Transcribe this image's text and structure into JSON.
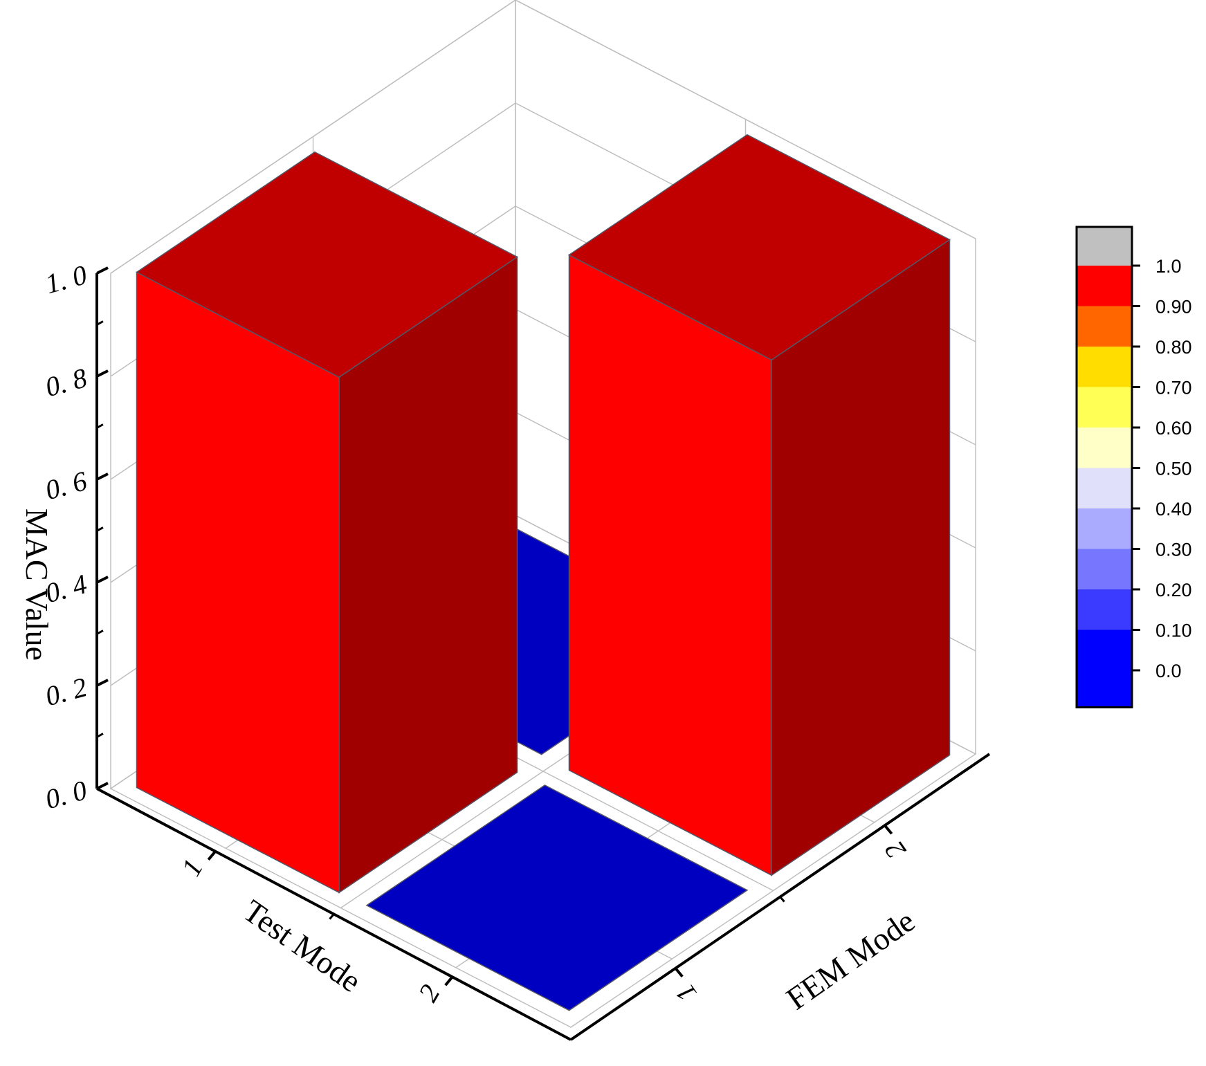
{
  "chart_data": {
    "type": "bar3d",
    "xlabel": "Test Mode",
    "ylabel": "FEM Mode",
    "zlabel": "MAC Value",
    "x_categories": [
      "1",
      "2"
    ],
    "y_categories": [
      "1",
      "2"
    ],
    "z_ticks": [
      "0. 0",
      "0. 2",
      "0. 4",
      "0. 6",
      "0. 8",
      "1. 0"
    ],
    "zlim": [
      0,
      1
    ],
    "values": [
      {
        "test": "1",
        "fem": "1",
        "value": 1.0
      },
      {
        "test": "1",
        "fem": "2",
        "value": 0.0
      },
      {
        "test": "2",
        "fem": "1",
        "value": 0.0
      },
      {
        "test": "2",
        "fem": "2",
        "value": 1.0
      }
    ],
    "grid": true,
    "colorbar": {
      "labels": [
        "1.0",
        "0.90",
        "0.80",
        "0.70",
        "0.60",
        "0.50",
        "0.40",
        "0.30",
        "0.20",
        "0.10",
        "0.0"
      ],
      "colors": [
        "#c0c0c0",
        "#ff0000",
        "#ff6600",
        "#ffdd00",
        "#ffff55",
        "#ffffc8",
        "#e0e0fa",
        "#aaaaff",
        "#7676ff",
        "#3b3bff",
        "#0000ff"
      ]
    },
    "bar_colors": {
      "high_front": "#ff0000",
      "high_side": "#a00000",
      "high_top": "#c00000",
      "low": "#0000c0"
    }
  }
}
